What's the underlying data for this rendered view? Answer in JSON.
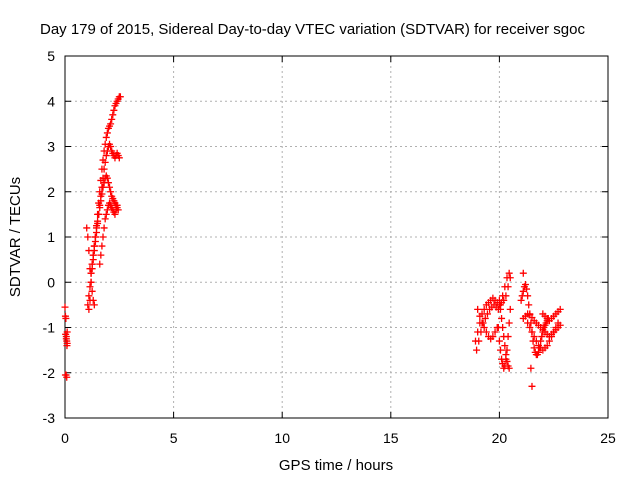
{
  "chart_data": {
    "type": "scatter",
    "title": "Day 179 of 2015, Sidereal Day-to-day VTEC variation (SDTVAR) for receiver sgoc",
    "xlabel": "GPS time / hours",
    "ylabel": "SDTVAR / TECUs",
    "xlim": [
      0,
      25
    ],
    "ylim": [
      -3,
      5
    ],
    "xticks": [
      "0",
      "5",
      "10",
      "15",
      "20",
      "25"
    ],
    "yticks": [
      "-3",
      "-2",
      "-1",
      "0",
      "1",
      "2",
      "3",
      "4",
      "5"
    ],
    "grid": true,
    "marker": "plus",
    "color": "#ff0000",
    "series": [
      {
        "x": [
          0.0,
          0.02,
          0.04,
          0.06,
          0.08,
          0.1,
          0.02,
          0.05,
          0.08,
          0.1,
          0.03,
          0.06,
          0.09,
          1.05,
          1.1,
          1.15,
          1.2,
          1.25,
          1.3,
          1.35,
          1.4,
          1.45,
          1.5,
          1.55,
          1.6,
          1.65,
          1.7,
          1.75,
          1.8,
          1.85,
          1.9,
          1.95,
          2.0,
          2.05,
          2.1,
          2.15,
          2.2,
          2.25,
          2.3,
          2.35,
          2.4,
          2.45,
          2.5,
          2.55,
          1.1,
          1.15,
          1.2,
          1.25,
          1.3,
          1.35,
          1.4,
          1.45,
          1.5,
          1.55,
          1.6,
          1.65,
          1.7,
          1.75,
          1.8,
          1.85,
          1.9,
          1.95,
          2.0,
          2.05,
          2.1,
          2.15,
          2.2,
          2.25,
          2.3,
          2.35,
          2.4,
          2.45,
          2.5,
          1.2,
          1.25,
          1.3,
          1.35,
          1.4,
          1.45,
          1.5,
          1.55,
          1.6,
          1.65,
          1.7,
          1.75,
          1.8,
          1.85,
          1.9,
          1.95,
          2.0,
          2.05,
          2.1,
          2.15,
          2.2,
          2.25,
          2.3,
          2.35,
          2.4,
          2.45,
          1.6,
          1.65,
          1.7,
          1.75,
          1.8,
          1.85,
          1.9,
          1.95,
          2.0,
          2.05,
          2.1,
          2.15,
          2.2,
          2.25,
          2.3,
          2.35,
          2.4,
          1.0,
          1.05,
          1.1,
          1.15,
          1.2,
          1.25,
          1.3,
          1.35,
          18.9,
          19.0,
          19.1,
          19.2,
          19.3,
          19.4,
          19.5,
          19.6,
          19.7,
          19.8,
          19.9,
          20.0,
          20.1,
          20.2,
          20.3,
          20.4,
          20.5,
          18.95,
          19.05,
          19.15,
          19.25,
          19.35,
          19.45,
          19.55,
          19.65,
          19.75,
          19.85,
          19.95,
          20.05,
          20.15,
          20.25,
          20.35,
          20.45,
          19.0,
          19.1,
          19.2,
          19.3,
          19.4,
          19.5,
          19.6,
          19.7,
          19.8,
          19.9,
          19.95,
          20.0,
          20.05,
          20.1,
          20.15,
          20.2,
          20.25,
          20.3,
          20.35,
          20.4,
          20.45,
          20.5,
          20.0,
          20.05,
          20.1,
          20.15,
          20.2,
          20.25,
          20.3,
          20.35,
          20.4,
          20.45,
          21.0,
          21.05,
          21.1,
          21.15,
          21.2,
          21.25,
          21.3,
          21.35,
          21.4,
          21.45,
          21.5,
          21.55,
          21.6,
          21.65,
          21.7,
          21.75,
          21.8,
          21.85,
          21.9,
          21.95,
          22.0,
          22.05,
          22.1,
          22.15,
          22.2,
          22.25,
          21.1,
          21.2,
          21.3,
          21.4,
          21.5,
          21.6,
          21.7,
          21.8,
          21.9,
          22.0,
          22.1,
          22.2,
          22.3,
          22.4,
          22.5,
          22.6,
          22.7,
          22.8,
          21.3,
          21.4,
          21.5,
          21.6,
          21.7,
          21.8,
          21.9,
          22.0,
          22.1,
          22.2,
          22.3,
          22.4,
          22.5,
          22.6,
          22.7,
          22.0,
          22.1,
          22.2,
          22.3,
          22.4,
          22.5,
          22.6,
          22.7,
          22.8,
          21.1,
          21.45,
          21.5
        ],
        "y": [
          -0.55,
          -0.75,
          -0.8,
          -1.2,
          -1.3,
          -1.35,
          -2.05,
          -2.05,
          -2.1,
          -1.1,
          -1.15,
          -1.25,
          -1.4,
          -0.5,
          -0.3,
          -0.1,
          0.2,
          0.4,
          0.6,
          0.8,
          1.0,
          1.25,
          1.5,
          1.75,
          2.0,
          2.25,
          2.5,
          2.7,
          2.9,
          3.05,
          3.2,
          3.3,
          3.4,
          3.45,
          3.5,
          3.6,
          3.7,
          3.8,
          3.9,
          3.95,
          4.0,
          4.05,
          4.1,
          4.1,
          -0.6,
          -0.4,
          0.0,
          0.3,
          0.5,
          0.7,
          0.9,
          1.1,
          1.3,
          1.5,
          1.7,
          1.9,
          2.1,
          2.3,
          2.5,
          2.65,
          2.8,
          2.9,
          3.0,
          3.05,
          3.0,
          2.9,
          2.85,
          2.8,
          2.75,
          2.8,
          2.85,
          2.8,
          2.75,
          0.2,
          0.4,
          0.6,
          0.8,
          1.0,
          1.2,
          1.35,
          1.5,
          1.65,
          1.8,
          1.95,
          2.1,
          2.2,
          2.3,
          2.35,
          2.3,
          2.2,
          2.1,
          2.0,
          1.9,
          1.85,
          1.8,
          1.75,
          1.7,
          1.65,
          1.6,
          0.4,
          0.6,
          0.8,
          1.0,
          1.2,
          1.4,
          1.5,
          1.6,
          1.7,
          1.75,
          1.7,
          1.65,
          1.6,
          1.55,
          1.5,
          1.6,
          1.7,
          1.2,
          1.0,
          0.7,
          0.3,
          0.0,
          -0.2,
          -0.4,
          -0.5,
          -1.3,
          -1.1,
          -0.9,
          -0.7,
          -0.6,
          -0.5,
          -0.45,
          -0.4,
          -0.35,
          -0.4,
          -0.45,
          -0.5,
          -0.45,
          -0.4,
          -0.3,
          -0.1,
          0.1,
          -1.5,
          -1.3,
          -1.1,
          -0.9,
          -0.8,
          -0.7,
          -0.6,
          -0.55,
          -0.5,
          -0.55,
          -0.6,
          -0.5,
          -0.3,
          -0.1,
          0.1,
          0.2,
          -0.6,
          -0.75,
          -0.9,
          -1.0,
          -1.1,
          -1.2,
          -1.25,
          -1.2,
          -1.1,
          -1.0,
          -1.0,
          -1.3,
          -1.5,
          -1.7,
          -1.8,
          -1.9,
          -1.85,
          -1.7,
          -1.5,
          -1.2,
          -0.9,
          -0.6,
          -0.4,
          -0.6,
          -0.8,
          -1.0,
          -1.2,
          -1.4,
          -1.6,
          -1.75,
          -1.85,
          -1.9,
          -0.4,
          -0.3,
          -0.2,
          -0.1,
          -0.05,
          -0.15,
          -0.3,
          -0.5,
          -0.7,
          -0.9,
          -1.1,
          -1.3,
          -1.45,
          -1.55,
          -1.6,
          -1.6,
          -1.55,
          -1.45,
          -1.3,
          -1.2,
          -1.1,
          -1.0,
          -0.95,
          -0.9,
          -0.85,
          -0.8,
          -0.8,
          -0.75,
          -0.7,
          -0.72,
          -0.78,
          -0.85,
          -0.9,
          -0.95,
          -1.0,
          -1.05,
          -1.1,
          -1.15,
          -1.2,
          -1.15,
          -1.1,
          -1.05,
          -1.0,
          -0.95,
          -0.9,
          -1.0,
          -1.1,
          -1.2,
          -1.3,
          -1.4,
          -1.45,
          -1.5,
          -1.45,
          -1.4,
          -1.3,
          -1.2,
          -1.1,
          -1.0,
          -0.9,
          -0.7,
          -0.75,
          -0.8,
          -0.85,
          -0.8,
          -0.75,
          -0.7,
          -0.65,
          -0.6,
          0.2,
          -1.9,
          -2.3
        ]
      }
    ]
  }
}
